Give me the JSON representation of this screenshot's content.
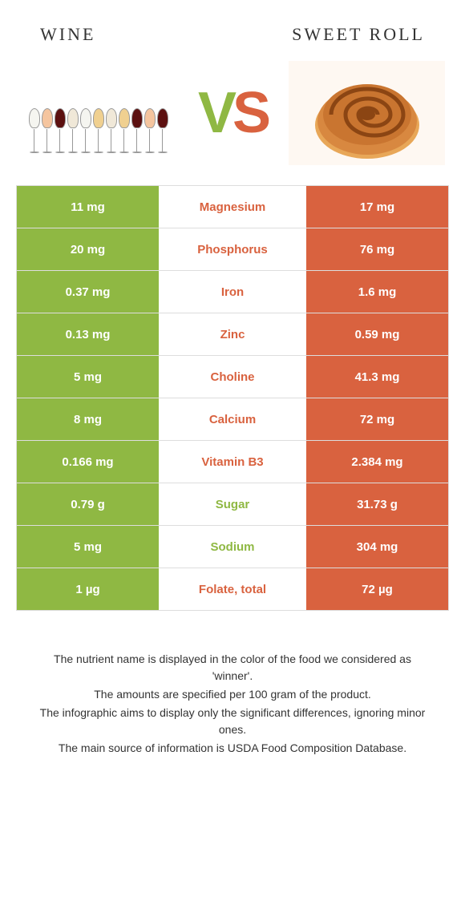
{
  "food1": {
    "title": "Wine",
    "color": "#8fb843"
  },
  "food2": {
    "title": "Sweet roll",
    "color": "#d9623f"
  },
  "vs": {
    "v": "V",
    "s": "S"
  },
  "nutrients": [
    {
      "name": "Magnesium",
      "left": "11 mg",
      "right": "17 mg",
      "winner": "right"
    },
    {
      "name": "Phosphorus",
      "left": "20 mg",
      "right": "76 mg",
      "winner": "right"
    },
    {
      "name": "Iron",
      "left": "0.37 mg",
      "right": "1.6 mg",
      "winner": "right"
    },
    {
      "name": "Zinc",
      "left": "0.13 mg",
      "right": "0.59 mg",
      "winner": "right"
    },
    {
      "name": "Choline",
      "left": "5 mg",
      "right": "41.3 mg",
      "winner": "right"
    },
    {
      "name": "Calcium",
      "left": "8 mg",
      "right": "72 mg",
      "winner": "right"
    },
    {
      "name": "Vitamin B3",
      "left": "0.166 mg",
      "right": "2.384 mg",
      "winner": "right"
    },
    {
      "name": "Sugar",
      "left": "0.79 g",
      "right": "31.73 g",
      "winner": "left"
    },
    {
      "name": "Sodium",
      "left": "5 mg",
      "right": "304 mg",
      "winner": "left"
    },
    {
      "name": "Folate, total",
      "left": "1 µg",
      "right": "72 µg",
      "winner": "right"
    }
  ],
  "wine_colors": [
    "#f5f5f0",
    "#f5c59f",
    "#5c1010",
    "#f0e8d8",
    "#f5f5f0",
    "#f0d090",
    "#f0e8d8",
    "#f0d090",
    "#5c1010",
    "#f5c59f",
    "#5c1010"
  ],
  "footer": {
    "line1": "The nutrient name is displayed in the color of the food we considered as 'winner'.",
    "line2": "The amounts are specified per 100 gram of the product.",
    "line3": "The infographic aims to display only the significant differences, ignoring minor ones.",
    "line4": "The main source of information is USDA Food Composition Database."
  }
}
